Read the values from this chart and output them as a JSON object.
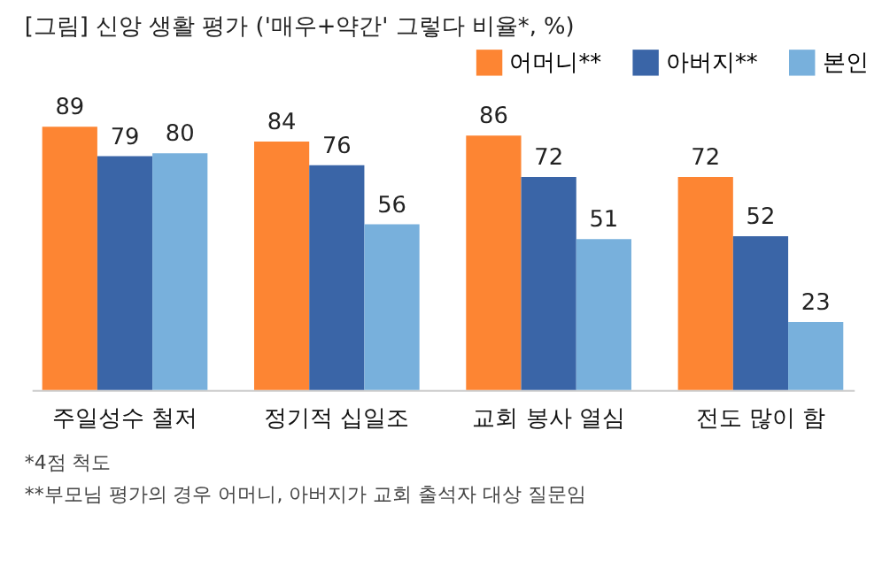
{
  "chart_data": {
    "type": "bar",
    "title": "[그림] 신앙 생활 평가 ('매우+약간' 그렇다 비율*, %)",
    "categories": [
      "주일성수 철저",
      "정기적 십일조",
      "교회 봉사 열심",
      "전도 많이 함"
    ],
    "series": [
      {
        "name": "어머니**",
        "color": "#fd8533",
        "values": [
          89,
          84,
          86,
          72
        ]
      },
      {
        "name": "아버지**",
        "color": "#3a65a7",
        "values": [
          79,
          76,
          72,
          52
        ]
      },
      {
        "name": "본인",
        "color": "#78b0dc",
        "values": [
          80,
          56,
          51,
          23
        ]
      }
    ],
    "tick_labels": "x",
    "data_labels": true,
    "legend": "top right",
    "grid": false,
    "annotations": [
      "*4점 척도",
      "**부모님 평가의 경우 어머니, 아버지가 교회 출석자 대상 질문임"
    ]
  }
}
